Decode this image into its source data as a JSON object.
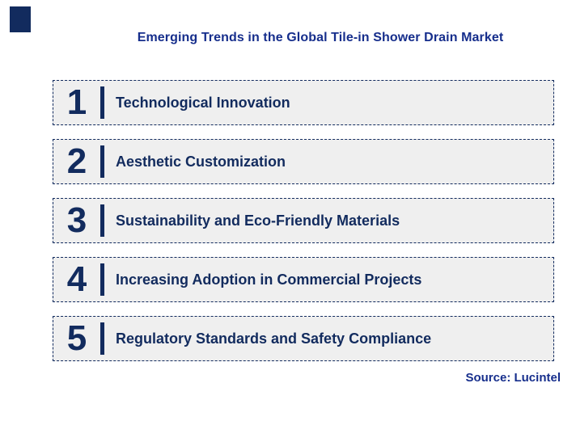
{
  "title": "Emerging Trends in the Global Tile-in Shower Drain Market",
  "trends": [
    {
      "number": "1",
      "label": "Technological Innovation"
    },
    {
      "number": "2",
      "label": "Aesthetic Customization"
    },
    {
      "number": "3",
      "label": "Sustainability and Eco-Friendly Materials"
    },
    {
      "number": "4",
      "label": "Increasing Adoption in Commercial Projects"
    },
    {
      "number": "5",
      "label": "Regulatory Standards and Safety Compliance"
    }
  ],
  "source": "Source: Lucintel",
  "theme": {
    "navy": "#122b5e",
    "title_blue": "#162e8c",
    "box_bg": "#efefef",
    "page_bg": "#ffffff"
  }
}
